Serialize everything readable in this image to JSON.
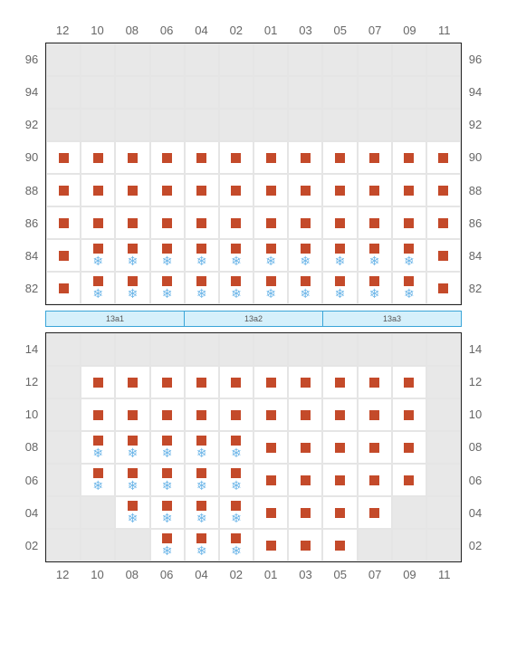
{
  "type": "seating-chart",
  "columns": [
    "12",
    "10",
    "08",
    "06",
    "04",
    "02",
    "01",
    "03",
    "05",
    "07",
    "09",
    "11"
  ],
  "colors": {
    "seat_fill": "#c44a2a",
    "snowflake": "#6bb5e8",
    "empty_cell_bg": "#e8e8e8",
    "filled_cell_bg": "#ffffff",
    "grid_border": "#e5e5e5",
    "outer_border": "#222222",
    "label_text": "#666666",
    "divider_bg": "#d5f0fb",
    "divider_border": "#3aa5d8"
  },
  "divider_segments": [
    "13a1",
    "13a2",
    "13a3"
  ],
  "top_block": {
    "rows": [
      "96",
      "94",
      "92",
      "90",
      "88",
      "86",
      "84",
      "82"
    ],
    "cells": {
      "96": [
        {
          "t": "e"
        },
        {
          "t": "e"
        },
        {
          "t": "e"
        },
        {
          "t": "e"
        },
        {
          "t": "e"
        },
        {
          "t": "e"
        },
        {
          "t": "e"
        },
        {
          "t": "e"
        },
        {
          "t": "e"
        },
        {
          "t": "e"
        },
        {
          "t": "e"
        },
        {
          "t": "e"
        }
      ],
      "94": [
        {
          "t": "e"
        },
        {
          "t": "e"
        },
        {
          "t": "e"
        },
        {
          "t": "e"
        },
        {
          "t": "e"
        },
        {
          "t": "e"
        },
        {
          "t": "e"
        },
        {
          "t": "e"
        },
        {
          "t": "e"
        },
        {
          "t": "e"
        },
        {
          "t": "e"
        },
        {
          "t": "e"
        }
      ],
      "92": [
        {
          "t": "e"
        },
        {
          "t": "e"
        },
        {
          "t": "e"
        },
        {
          "t": "e"
        },
        {
          "t": "e"
        },
        {
          "t": "e"
        },
        {
          "t": "e"
        },
        {
          "t": "e"
        },
        {
          "t": "e"
        },
        {
          "t": "e"
        },
        {
          "t": "e"
        },
        {
          "t": "e"
        }
      ],
      "90": [
        {
          "t": "s"
        },
        {
          "t": "s"
        },
        {
          "t": "s"
        },
        {
          "t": "s"
        },
        {
          "t": "s"
        },
        {
          "t": "s"
        },
        {
          "t": "s"
        },
        {
          "t": "s"
        },
        {
          "t": "s"
        },
        {
          "t": "s"
        },
        {
          "t": "s"
        },
        {
          "t": "s"
        }
      ],
      "88": [
        {
          "t": "s"
        },
        {
          "t": "s"
        },
        {
          "t": "s"
        },
        {
          "t": "s"
        },
        {
          "t": "s"
        },
        {
          "t": "s"
        },
        {
          "t": "s"
        },
        {
          "t": "s"
        },
        {
          "t": "s"
        },
        {
          "t": "s"
        },
        {
          "t": "s"
        },
        {
          "t": "s"
        }
      ],
      "86": [
        {
          "t": "s"
        },
        {
          "t": "s"
        },
        {
          "t": "s"
        },
        {
          "t": "s"
        },
        {
          "t": "s"
        },
        {
          "t": "s"
        },
        {
          "t": "s"
        },
        {
          "t": "s"
        },
        {
          "t": "s"
        },
        {
          "t": "s"
        },
        {
          "t": "s"
        },
        {
          "t": "s"
        }
      ],
      "84": [
        {
          "t": "s"
        },
        {
          "t": "sn"
        },
        {
          "t": "sn"
        },
        {
          "t": "sn"
        },
        {
          "t": "sn"
        },
        {
          "t": "sn"
        },
        {
          "t": "sn"
        },
        {
          "t": "sn"
        },
        {
          "t": "sn"
        },
        {
          "t": "sn"
        },
        {
          "t": "sn"
        },
        {
          "t": "s"
        }
      ],
      "82": [
        {
          "t": "s"
        },
        {
          "t": "sn"
        },
        {
          "t": "sn"
        },
        {
          "t": "sn"
        },
        {
          "t": "sn"
        },
        {
          "t": "sn"
        },
        {
          "t": "sn"
        },
        {
          "t": "sn"
        },
        {
          "t": "sn"
        },
        {
          "t": "sn"
        },
        {
          "t": "sn"
        },
        {
          "t": "s"
        }
      ]
    }
  },
  "bottom_block": {
    "rows": [
      "14",
      "12",
      "10",
      "08",
      "06",
      "04",
      "02"
    ],
    "cells": {
      "14": [
        {
          "t": "e"
        },
        {
          "t": "e"
        },
        {
          "t": "e"
        },
        {
          "t": "e"
        },
        {
          "t": "e"
        },
        {
          "t": "e"
        },
        {
          "t": "e"
        },
        {
          "t": "e"
        },
        {
          "t": "e"
        },
        {
          "t": "e"
        },
        {
          "t": "e"
        },
        {
          "t": "e"
        }
      ],
      "12": [
        {
          "t": "e"
        },
        {
          "t": "s"
        },
        {
          "t": "s"
        },
        {
          "t": "s"
        },
        {
          "t": "s"
        },
        {
          "t": "s"
        },
        {
          "t": "s"
        },
        {
          "t": "s"
        },
        {
          "t": "s"
        },
        {
          "t": "s"
        },
        {
          "t": "s"
        },
        {
          "t": "e"
        }
      ],
      "10": [
        {
          "t": "e"
        },
        {
          "t": "s"
        },
        {
          "t": "s"
        },
        {
          "t": "s"
        },
        {
          "t": "s"
        },
        {
          "t": "s"
        },
        {
          "t": "s"
        },
        {
          "t": "s"
        },
        {
          "t": "s"
        },
        {
          "t": "s"
        },
        {
          "t": "s"
        },
        {
          "t": "e"
        }
      ],
      "08": [
        {
          "t": "e"
        },
        {
          "t": "sn"
        },
        {
          "t": "sn"
        },
        {
          "t": "sn"
        },
        {
          "t": "sn"
        },
        {
          "t": "sn"
        },
        {
          "t": "s"
        },
        {
          "t": "s"
        },
        {
          "t": "s"
        },
        {
          "t": "s"
        },
        {
          "t": "s"
        },
        {
          "t": "e"
        }
      ],
      "06": [
        {
          "t": "e"
        },
        {
          "t": "sn"
        },
        {
          "t": "sn"
        },
        {
          "t": "sn"
        },
        {
          "t": "sn"
        },
        {
          "t": "sn"
        },
        {
          "t": "s"
        },
        {
          "t": "s"
        },
        {
          "t": "s"
        },
        {
          "t": "s"
        },
        {
          "t": "s"
        },
        {
          "t": "e"
        }
      ],
      "04": [
        {
          "t": "e"
        },
        {
          "t": "e"
        },
        {
          "t": "sn"
        },
        {
          "t": "sn"
        },
        {
          "t": "sn"
        },
        {
          "t": "sn"
        },
        {
          "t": "s"
        },
        {
          "t": "s"
        },
        {
          "t": "s"
        },
        {
          "t": "s"
        },
        {
          "t": "e"
        },
        {
          "t": "e"
        }
      ],
      "02": [
        {
          "t": "e"
        },
        {
          "t": "e"
        },
        {
          "t": "e"
        },
        {
          "t": "sn"
        },
        {
          "t": "sn"
        },
        {
          "t": "sn"
        },
        {
          "t": "s"
        },
        {
          "t": "s"
        },
        {
          "t": "s"
        },
        {
          "t": "e"
        },
        {
          "t": "e"
        },
        {
          "t": "e"
        }
      ]
    }
  }
}
